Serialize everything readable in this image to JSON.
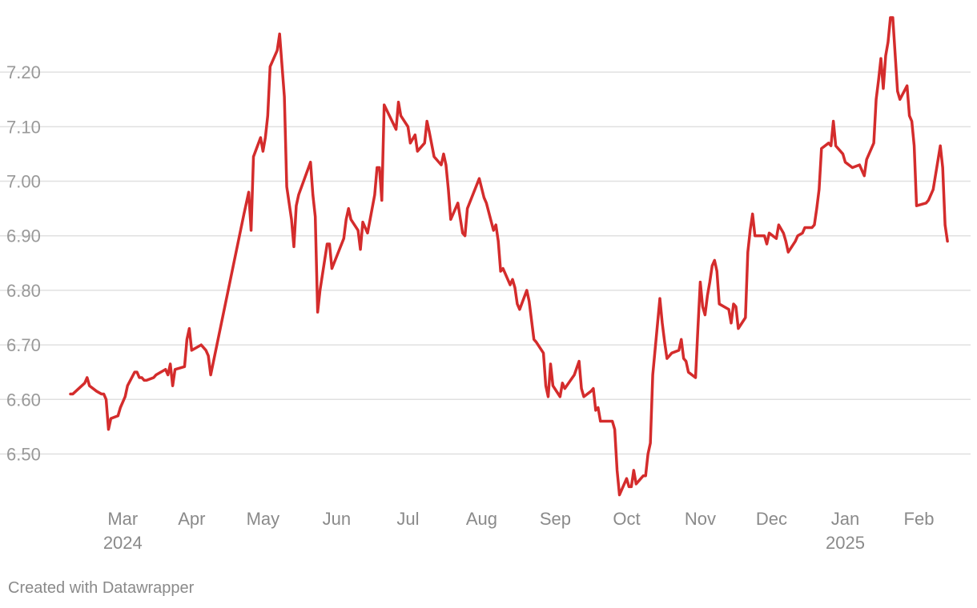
{
  "chart_data": {
    "type": "line",
    "title": "",
    "xlabel": "",
    "ylabel": "",
    "ylim": [
      6.42,
      7.3
    ],
    "xlim": [
      0,
      372
    ],
    "grid": true,
    "line_color": "#d42c2c",
    "grid_color": "#e0e0e0",
    "y_ticks": [
      {
        "value": 6.5,
        "label": "6.50"
      },
      {
        "value": 6.6,
        "label": "6.60"
      },
      {
        "value": 6.7,
        "label": "6.70"
      },
      {
        "value": 6.8,
        "label": "6.80"
      },
      {
        "value": 6.9,
        "label": "6.90"
      },
      {
        "value": 7.0,
        "label": "7.00"
      },
      {
        "value": 7.1,
        "label": "7.10"
      },
      {
        "value": 7.2,
        "label": "7.20"
      }
    ],
    "x_ticks": [
      {
        "value": 22,
        "label": "Mar",
        "year": "2024"
      },
      {
        "value": 51,
        "label": "Apr"
      },
      {
        "value": 81,
        "label": "May"
      },
      {
        "value": 112,
        "label": "Jun"
      },
      {
        "value": 142,
        "label": "Jul"
      },
      {
        "value": 173,
        "label": "Aug"
      },
      {
        "value": 204,
        "label": "Sep"
      },
      {
        "value": 234,
        "label": "Oct"
      },
      {
        "value": 265,
        "label": "Nov"
      },
      {
        "value": 295,
        "label": "Dec"
      },
      {
        "value": 326,
        "label": "Jan",
        "year": "2025"
      },
      {
        "value": 357,
        "label": "Feb"
      }
    ],
    "series": [
      {
        "name": "value",
        "points": [
          [
            0,
            6.61
          ],
          [
            1,
            6.61
          ],
          [
            6,
            6.63
          ],
          [
            7,
            6.64
          ],
          [
            8,
            6.625
          ],
          [
            11,
            6.615
          ],
          [
            13,
            6.61
          ],
          [
            14,
            6.61
          ],
          [
            15,
            6.6
          ],
          [
            16,
            6.545
          ],
          [
            17,
            6.565
          ],
          [
            20,
            6.57
          ],
          [
            21,
            6.585
          ],
          [
            22,
            6.595
          ],
          [
            23,
            6.605
          ],
          [
            24,
            6.625
          ],
          [
            27,
            6.65
          ],
          [
            28,
            6.65
          ],
          [
            29,
            6.64
          ],
          [
            30,
            6.64
          ],
          [
            31,
            6.635
          ],
          [
            32,
            6.635
          ],
          [
            35,
            6.64
          ],
          [
            36,
            6.645
          ],
          [
            40,
            6.655
          ],
          [
            41,
            6.645
          ],
          [
            42,
            6.665
          ],
          [
            43,
            6.625
          ],
          [
            44,
            6.655
          ],
          [
            48,
            6.66
          ],
          [
            49,
            6.71
          ],
          [
            50,
            6.73
          ],
          [
            51,
            6.69
          ],
          [
            55,
            6.7
          ],
          [
            57,
            6.69
          ],
          [
            58,
            6.68
          ],
          [
            59,
            6.645
          ],
          [
            73,
            6.94
          ],
          [
            75,
            6.98
          ],
          [
            76,
            6.91
          ],
          [
            77,
            7.045
          ],
          [
            80,
            7.08
          ],
          [
            81,
            7.055
          ],
          [
            82,
            7.08
          ],
          [
            83,
            7.12
          ],
          [
            84,
            7.21
          ],
          [
            87,
            7.24
          ],
          [
            88,
            7.27
          ],
          [
            90,
            7.155
          ],
          [
            91,
            6.99
          ],
          [
            93,
            6.93
          ],
          [
            94,
            6.88
          ],
          [
            95,
            6.955
          ],
          [
            96,
            6.975
          ],
          [
            101,
            7.035
          ],
          [
            102,
            6.975
          ],
          [
            103,
            6.935
          ],
          [
            104,
            6.76
          ],
          [
            105,
            6.8
          ],
          [
            108,
            6.885
          ],
          [
            109,
            6.885
          ],
          [
            110,
            6.84
          ],
          [
            115,
            6.895
          ],
          [
            116,
            6.93
          ],
          [
            117,
            6.95
          ],
          [
            118,
            6.93
          ],
          [
            121,
            6.91
          ],
          [
            122,
            6.875
          ],
          [
            123,
            6.925
          ],
          [
            125,
            6.905
          ],
          [
            128,
            6.975
          ],
          [
            129,
            7.025
          ],
          [
            130,
            7.025
          ],
          [
            131,
            6.965
          ],
          [
            132,
            7.14
          ],
          [
            137,
            7.095
          ],
          [
            138,
            7.145
          ],
          [
            139,
            7.12
          ],
          [
            142,
            7.1
          ],
          [
            143,
            7.07
          ],
          [
            145,
            7.085
          ],
          [
            146,
            7.055
          ],
          [
            149,
            7.07
          ],
          [
            150,
            7.11
          ],
          [
            151,
            7.09
          ],
          [
            153,
            7.045
          ],
          [
            156,
            7.03
          ],
          [
            157,
            7.05
          ],
          [
            158,
            7.03
          ],
          [
            159,
            6.985
          ],
          [
            160,
            6.93
          ],
          [
            163,
            6.96
          ],
          [
            165,
            6.905
          ],
          [
            166,
            6.9
          ],
          [
            167,
            6.95
          ],
          [
            172,
            7.005
          ],
          [
            174,
            6.97
          ],
          [
            175,
            6.96
          ],
          [
            178,
            6.91
          ],
          [
            179,
            6.92
          ],
          [
            180,
            6.89
          ],
          [
            181,
            6.835
          ],
          [
            182,
            6.84
          ],
          [
            183,
            6.83
          ],
          [
            185,
            6.81
          ],
          [
            186,
            6.82
          ],
          [
            187,
            6.805
          ],
          [
            188,
            6.775
          ],
          [
            189,
            6.765
          ],
          [
            192,
            6.8
          ],
          [
            193,
            6.78
          ],
          [
            195,
            6.71
          ],
          [
            196,
            6.705
          ],
          [
            199,
            6.685
          ],
          [
            200,
            6.625
          ],
          [
            201,
            6.605
          ],
          [
            202,
            6.665
          ],
          [
            203,
            6.625
          ],
          [
            206,
            6.605
          ],
          [
            207,
            6.63
          ],
          [
            208,
            6.62
          ],
          [
            212,
            6.645
          ],
          [
            214,
            6.67
          ],
          [
            215,
            6.62
          ],
          [
            216,
            6.605
          ],
          [
            219,
            6.615
          ],
          [
            220,
            6.62
          ],
          [
            221,
            6.58
          ],
          [
            222,
            6.585
          ],
          [
            223,
            6.56
          ],
          [
            227,
            6.56
          ],
          [
            228,
            6.56
          ],
          [
            229,
            6.545
          ],
          [
            230,
            6.47
          ],
          [
            231,
            6.425
          ],
          [
            234,
            6.455
          ],
          [
            235,
            6.44
          ],
          [
            236,
            6.44
          ],
          [
            237,
            6.47
          ],
          [
            238,
            6.445
          ],
          [
            241,
            6.46
          ],
          [
            242,
            6.46
          ],
          [
            243,
            6.5
          ],
          [
            244,
            6.52
          ],
          [
            245,
            6.645
          ],
          [
            248,
            6.785
          ],
          [
            249,
            6.74
          ],
          [
            250,
            6.705
          ],
          [
            251,
            6.675
          ],
          [
            253,
            6.685
          ],
          [
            256,
            6.69
          ],
          [
            257,
            6.71
          ],
          [
            258,
            6.675
          ],
          [
            259,
            6.67
          ],
          [
            260,
            6.65
          ],
          [
            263,
            6.64
          ],
          [
            264,
            6.73
          ],
          [
            265,
            6.815
          ],
          [
            266,
            6.77
          ],
          [
            267,
            6.755
          ],
          [
            268,
            6.79
          ],
          [
            269,
            6.815
          ],
          [
            270,
            6.845
          ],
          [
            271,
            6.855
          ],
          [
            272,
            6.835
          ],
          [
            273,
            6.775
          ],
          [
            277,
            6.765
          ],
          [
            278,
            6.74
          ],
          [
            279,
            6.775
          ],
          [
            280,
            6.77
          ],
          [
            281,
            6.73
          ],
          [
            284,
            6.75
          ],
          [
            285,
            6.87
          ],
          [
            286,
            6.91
          ],
          [
            287,
            6.94
          ],
          [
            288,
            6.9
          ],
          [
            292,
            6.9
          ],
          [
            293,
            6.885
          ],
          [
            294,
            6.905
          ],
          [
            297,
            6.895
          ],
          [
            298,
            6.92
          ],
          [
            300,
            6.905
          ],
          [
            301,
            6.89
          ],
          [
            302,
            6.87
          ],
          [
            305,
            6.89
          ],
          [
            306,
            6.9
          ],
          [
            308,
            6.905
          ],
          [
            309,
            6.915
          ],
          [
            312,
            6.915
          ],
          [
            313,
            6.92
          ],
          [
            314,
            6.95
          ],
          [
            315,
            6.985
          ],
          [
            316,
            7.06
          ],
          [
            319,
            7.07
          ],
          [
            320,
            7.065
          ],
          [
            321,
            7.11
          ],
          [
            322,
            7.065
          ],
          [
            325,
            7.05
          ],
          [
            326,
            7.035
          ],
          [
            329,
            7.025
          ],
          [
            332,
            7.03
          ],
          [
            333,
            7.02
          ],
          [
            334,
            7.01
          ],
          [
            335,
            7.04
          ],
          [
            338,
            7.07
          ],
          [
            339,
            7.15
          ],
          [
            340,
            7.185
          ],
          [
            341,
            7.225
          ],
          [
            342,
            7.17
          ],
          [
            343,
            7.23
          ],
          [
            344,
            7.255
          ],
          [
            345,
            7.3
          ],
          [
            346,
            7.3
          ],
          [
            348,
            7.165
          ],
          [
            349,
            7.15
          ],
          [
            352,
            7.175
          ],
          [
            353,
            7.12
          ],
          [
            354,
            7.11
          ],
          [
            355,
            7.065
          ],
          [
            356,
            6.955
          ],
          [
            360,
            6.96
          ],
          [
            361,
            6.965
          ],
          [
            363,
            6.985
          ],
          [
            366,
            7.065
          ],
          [
            367,
            7.025
          ],
          [
            368,
            6.92
          ],
          [
            369,
            6.89
          ]
        ]
      }
    ]
  },
  "footer": {
    "credit": "Created with Datawrapper"
  }
}
